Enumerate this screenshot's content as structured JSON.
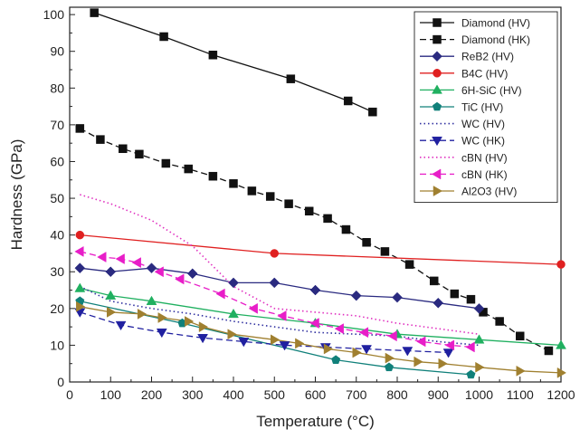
{
  "chart_data": {
    "type": "line",
    "xlabel": "Temperature (°C)",
    "ylabel": "Hardness (GPa)",
    "xlim": [
      0,
      1200
    ],
    "ylim": [
      0,
      102
    ],
    "xticks": [
      "0",
      "100",
      "200",
      "300",
      "400",
      "500",
      "600",
      "700",
      "800",
      "900",
      "1000",
      "1100",
      "1200"
    ],
    "yticks": [
      "0",
      "10",
      "20",
      "30",
      "40",
      "50",
      "60",
      "70",
      "80",
      "90",
      "100"
    ],
    "legend_position": "top-right",
    "series": [
      {
        "name": "Diamond (HV)",
        "color": "#111111",
        "dash": "solid",
        "marker": "square",
        "x": [
          60,
          230,
          350,
          540,
          680,
          740
        ],
        "y": [
          100.5,
          94,
          89,
          82.5,
          76.5,
          73.5
        ]
      },
      {
        "name": "Diamond (HK)",
        "color": "#111111",
        "dash": "dash",
        "marker": "square",
        "x": [
          25,
          75,
          130,
          170,
          235,
          290,
          350,
          400,
          445,
          490,
          535,
          585,
          630,
          675,
          725,
          770,
          830,
          890,
          940,
          980,
          1010,
          1050,
          1100,
          1170
        ],
        "y": [
          69,
          66,
          63.5,
          62,
          59.5,
          58,
          56,
          54,
          52,
          50.5,
          48.5,
          46.5,
          44.5,
          41.5,
          38,
          35.5,
          32,
          27.5,
          24,
          22.5,
          19,
          16.5,
          12.5,
          8.5
        ]
      },
      {
        "name": "ReB2 (HV)",
        "color": "#2a2a80",
        "dash": "solid",
        "marker": "diamond",
        "x": [
          25,
          100,
          200,
          300,
          400,
          500,
          600,
          700,
          800,
          900,
          1000
        ],
        "y": [
          31,
          30,
          31,
          29.5,
          27,
          27,
          25,
          23.5,
          23,
          21.5,
          20
        ]
      },
      {
        "name": "B4C (HV)",
        "color": "#e02020",
        "dash": "solid",
        "marker": "circle",
        "x": [
          25,
          500,
          1200
        ],
        "y": [
          40,
          35,
          32
        ]
      },
      {
        "name": "6H-SiC (HV)",
        "color": "#20b060",
        "dash": "solid",
        "marker": "triangle-up",
        "x": [
          25,
          100,
          200,
          400,
          600,
          800,
          1000,
          1200
        ],
        "y": [
          25.5,
          23.5,
          22,
          18.5,
          16,
          13,
          11.5,
          10
        ]
      },
      {
        "name": "TiC (HV)",
        "color": "#10807a",
        "dash": "solid",
        "marker": "pentagon",
        "x": [
          25,
          275,
          650,
          780,
          980
        ],
        "y": [
          22,
          16,
          6,
          4,
          2
        ]
      },
      {
        "name": "WC (HV)",
        "color": "#3030a0",
        "dash": "dot",
        "marker": "none",
        "x": [
          25,
          100,
          200,
          300,
          400,
          500,
          600,
          700,
          800,
          900,
          1000
        ],
        "y": [
          26,
          22,
          20,
          18.5,
          16.5,
          15,
          13.5,
          13,
          12.5,
          11,
          10
        ]
      },
      {
        "name": "WC (HK)",
        "color": "#2020a0",
        "dash": "dash",
        "marker": "triangle-down",
        "x": [
          25,
          125,
          225,
          325,
          425,
          525,
          625,
          725,
          825,
          925
        ],
        "y": [
          19,
          15.5,
          13.5,
          12,
          11,
          10,
          9.5,
          9,
          8.5,
          8
        ]
      },
      {
        "name": "cBN (HV)",
        "color": "#e030c0",
        "dash": "dot",
        "marker": "none",
        "x": [
          25,
          100,
          200,
          300,
          400,
          500,
          600,
          700,
          800,
          900,
          1000
        ],
        "y": [
          51,
          48.5,
          44,
          37,
          26,
          20,
          19,
          18,
          16,
          14.5,
          13
        ]
      },
      {
        "name": "cBN (HK)",
        "color": "#e81ec8",
        "dash": "dash",
        "marker": "triangle-left",
        "x": [
          25,
          80,
          125,
          165,
          220,
          270,
          370,
          450,
          520,
          600,
          660,
          720,
          790,
          860,
          930,
          980
        ],
        "y": [
          35.5,
          34,
          33.5,
          32.5,
          30,
          28,
          24,
          20,
          18,
          16,
          14.5,
          13.5,
          12.5,
          11,
          10,
          9.5
        ]
      },
      {
        "name": "Al2O3 (HV)",
        "color": "#a08030",
        "dash": "solid",
        "marker": "triangle-right",
        "x": [
          25,
          100,
          175,
          225,
          290,
          325,
          395,
          500,
          560,
          630,
          700,
          780,
          850,
          910,
          1000,
          1100,
          1200
        ],
        "y": [
          20.5,
          19,
          18.5,
          17.5,
          16.5,
          15,
          13,
          11.5,
          10.5,
          9,
          8,
          6.5,
          5.5,
          5,
          4,
          3,
          2.5
        ]
      }
    ]
  }
}
